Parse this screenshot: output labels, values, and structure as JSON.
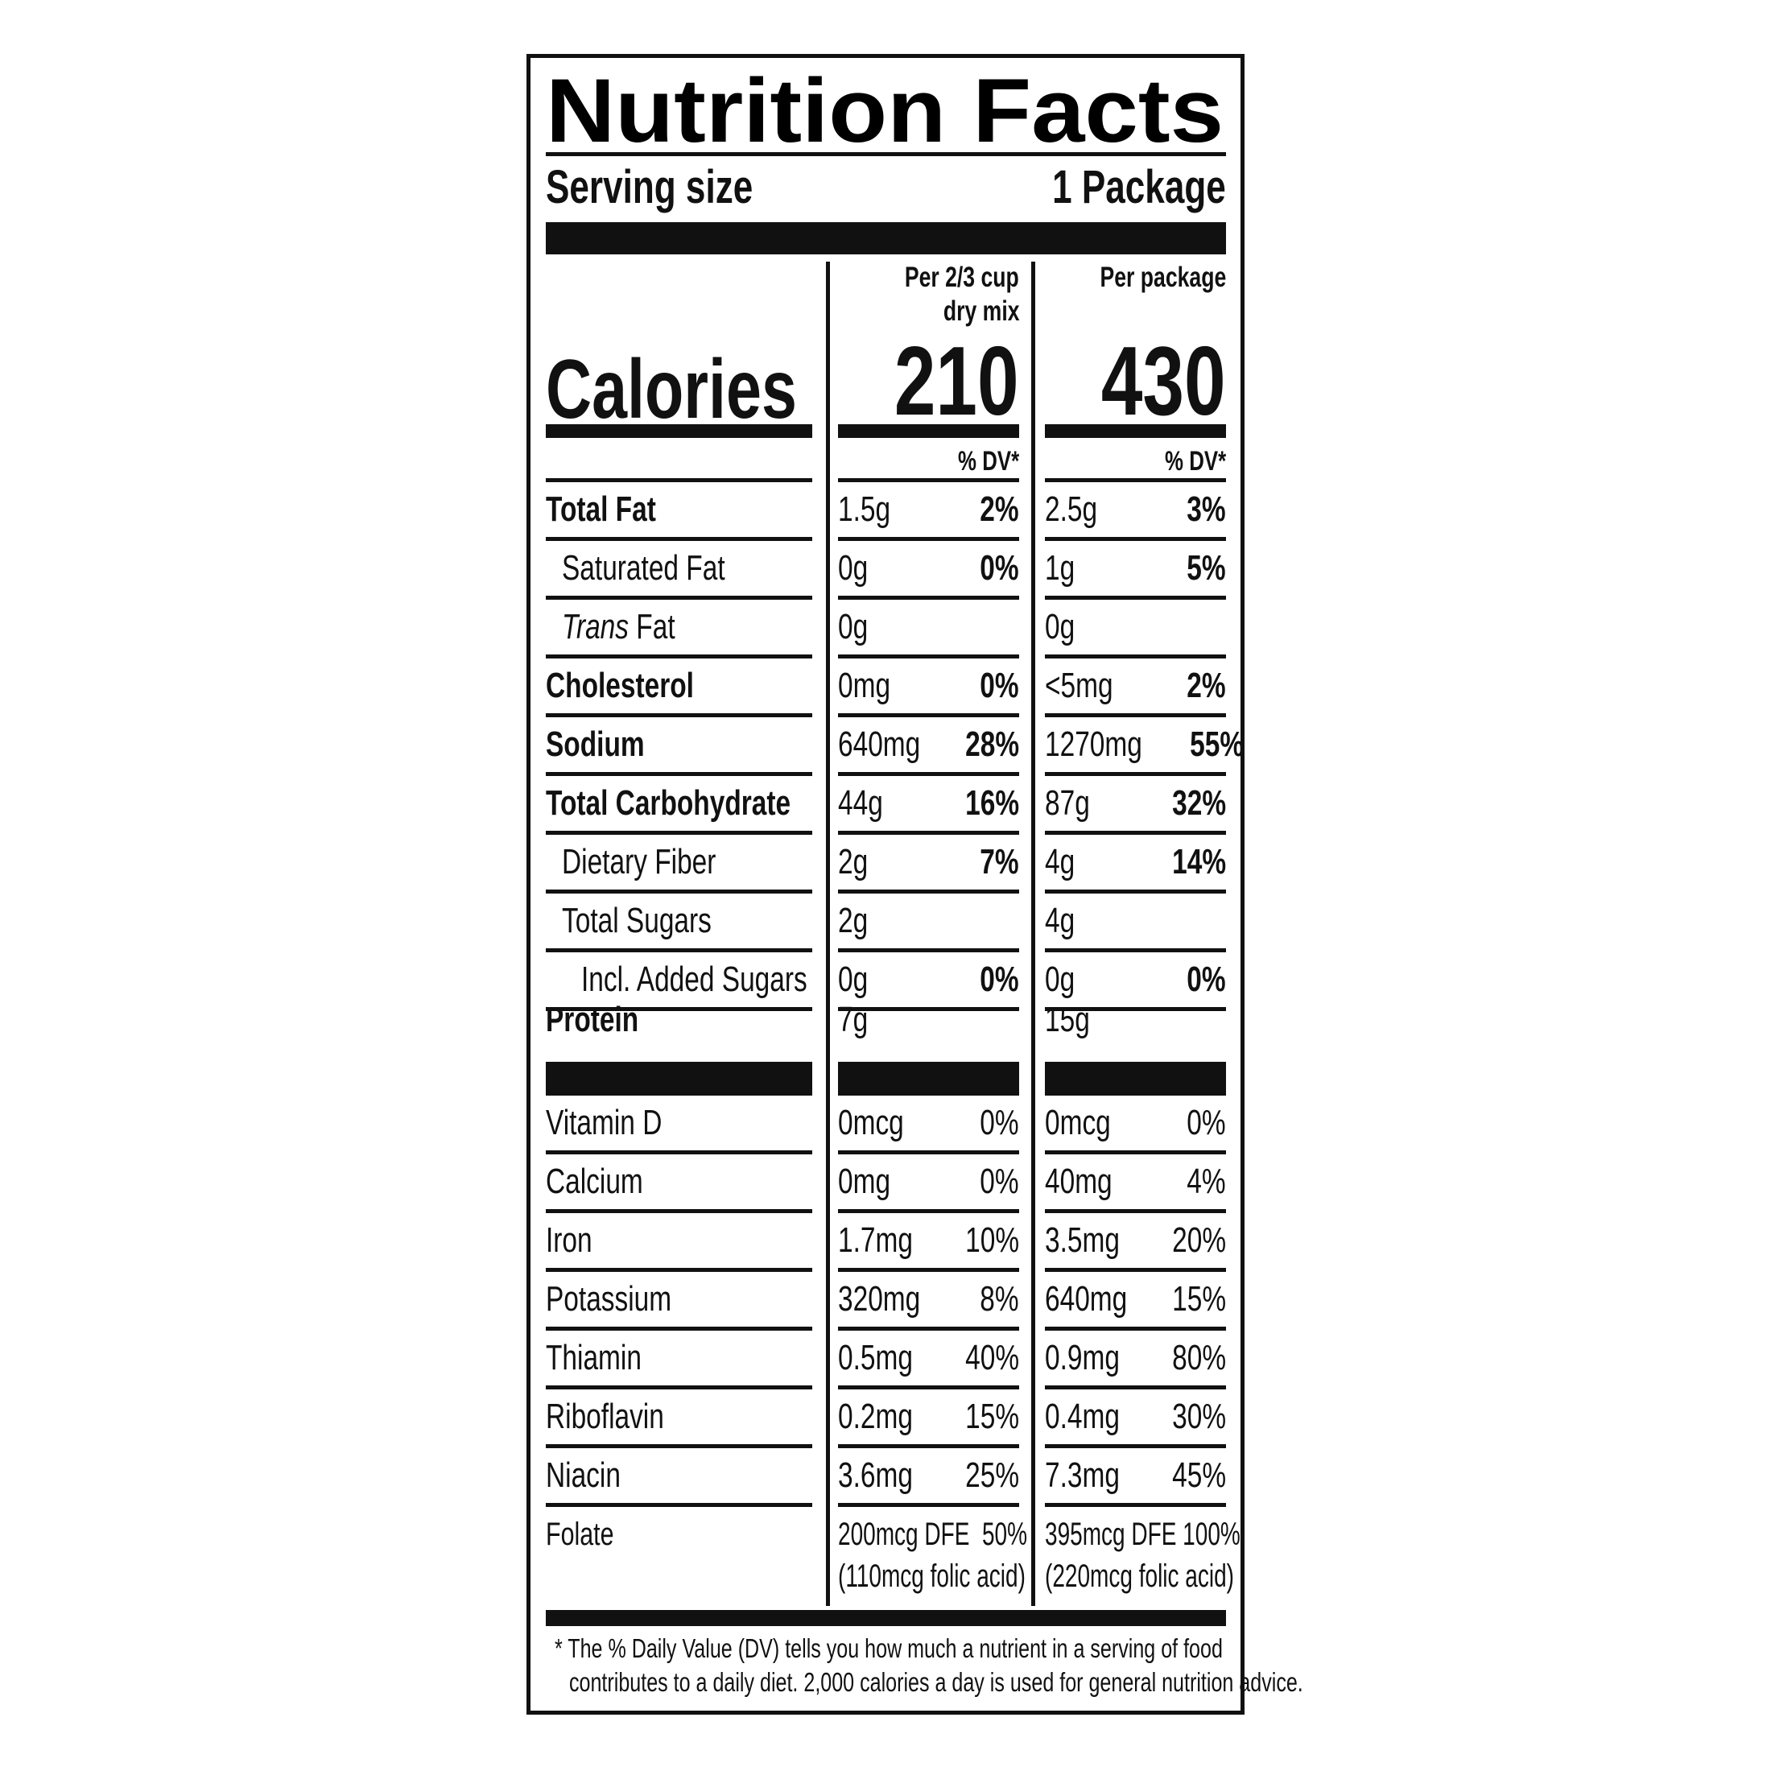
{
  "title": "Nutrition Facts",
  "serving": {
    "label": "Serving size",
    "value": "1 Package"
  },
  "calories": {
    "label": "Calories",
    "columns": [
      {
        "header_line1": "Per 2/3 cup",
        "header_line2": "dry mix",
        "value": "210",
        "dv_header": "% DV*"
      },
      {
        "header_line1": "Per package",
        "header_line2": "",
        "value": "430",
        "dv_header": "% DV*"
      }
    ]
  },
  "nutrients": [
    {
      "name": "Total Fat",
      "bold": true,
      "indent": 0,
      "col1": {
        "amount": "1.5g",
        "dv": "2%"
      },
      "col2": {
        "amount": "2.5g",
        "dv": "3%"
      }
    },
    {
      "name": "Saturated Fat",
      "bold": false,
      "indent": 1,
      "col1": {
        "amount": "0g",
        "dv": "0%"
      },
      "col2": {
        "amount": "1g",
        "dv": "5%"
      }
    },
    {
      "name_italic": "Trans",
      "name": " Fat",
      "bold": false,
      "indent": 1,
      "col1": {
        "amount": "0g",
        "dv": ""
      },
      "col2": {
        "amount": "0g",
        "dv": ""
      }
    },
    {
      "name": "Cholesterol",
      "bold": true,
      "indent": 0,
      "col1": {
        "amount": "0mg",
        "dv": "0%"
      },
      "col2": {
        "amount": "<5mg",
        "dv": "2%"
      }
    },
    {
      "name": "Sodium",
      "bold": true,
      "indent": 0,
      "col1": {
        "amount": "640mg",
        "dv": "28%"
      },
      "col2": {
        "amount": "1270mg",
        "dv": "55%"
      }
    },
    {
      "name": "Total Carbohydrate",
      "bold": true,
      "indent": 0,
      "col1": {
        "amount": "44g",
        "dv": "16%"
      },
      "col2": {
        "amount": "87g",
        "dv": "32%"
      }
    },
    {
      "name": "Dietary Fiber",
      "bold": false,
      "indent": 1,
      "col1": {
        "amount": "2g",
        "dv": "7%"
      },
      "col2": {
        "amount": "4g",
        "dv": "14%"
      }
    },
    {
      "name": "Total Sugars",
      "bold": false,
      "indent": 1,
      "col1": {
        "amount": "2g",
        "dv": ""
      },
      "col2": {
        "amount": "4g",
        "dv": ""
      }
    },
    {
      "name": "Incl. Added Sugars",
      "bold": false,
      "indent": 2,
      "col1": {
        "amount": "0g",
        "dv": "0%"
      },
      "col2": {
        "amount": "0g",
        "dv": "0%"
      }
    },
    {
      "name": "Protein",
      "bold": true,
      "indent": 0,
      "col1": {
        "amount": "7g",
        "dv": ""
      },
      "col2": {
        "amount": "15g",
        "dv": ""
      }
    }
  ],
  "vitamins": [
    {
      "name": "Vitamin D",
      "col1": {
        "amount": "0mcg",
        "dv": "0%"
      },
      "col2": {
        "amount": "0mcg",
        "dv": "0%"
      }
    },
    {
      "name": "Calcium",
      "col1": {
        "amount": "0mg",
        "dv": "0%"
      },
      "col2": {
        "amount": "40mg",
        "dv": "4%"
      }
    },
    {
      "name": "Iron",
      "col1": {
        "amount": "1.7mg",
        "dv": "10%"
      },
      "col2": {
        "amount": "3.5mg",
        "dv": "20%"
      }
    },
    {
      "name": "Potassium",
      "col1": {
        "amount": "320mg",
        "dv": "8%"
      },
      "col2": {
        "amount": "640mg",
        "dv": "15%"
      }
    },
    {
      "name": "Thiamin",
      "col1": {
        "amount": "0.5mg",
        "dv": "40%"
      },
      "col2": {
        "amount": "0.9mg",
        "dv": "80%"
      }
    },
    {
      "name": "Riboflavin",
      "col1": {
        "amount": "0.2mg",
        "dv": "15%"
      },
      "col2": {
        "amount": "0.4mg",
        "dv": "30%"
      }
    },
    {
      "name": "Niacin",
      "col1": {
        "amount": "3.6mg",
        "dv": "25%"
      },
      "col2": {
        "amount": "7.3mg",
        "dv": "45%"
      }
    }
  ],
  "folate": {
    "name": "Folate",
    "col1": {
      "line1": "200mcg DFE  50%",
      "line2": "(110mcg folic acid)"
    },
    "col2": {
      "line1": "395mcg DFE 100%",
      "line2": "(220mcg folic acid)"
    }
  },
  "footnote": {
    "line1": "*  The % Daily Value (DV) tells you how much a nutrient in a serving of food",
    "line2": "contributes to a daily diet. 2,000 calories a day is used for general nutrition advice."
  }
}
